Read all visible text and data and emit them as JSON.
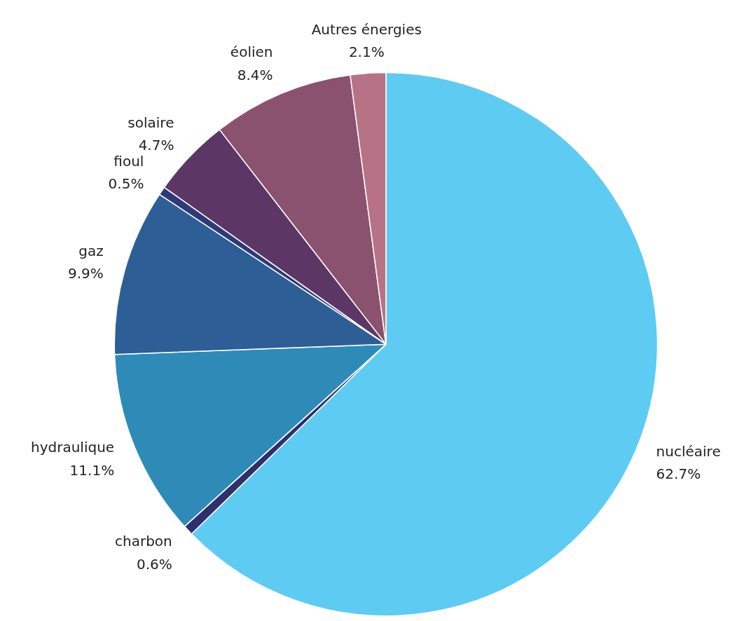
{
  "chart_data": {
    "type": "pie",
    "categories": [
      "nucléaire",
      "charbon",
      "hydraulique",
      "gaz",
      "fioul",
      "solaire",
      "éolien",
      "Autres énergies"
    ],
    "values": [
      62.7,
      0.6,
      11.1,
      9.9,
      0.5,
      4.7,
      8.4,
      2.1
    ],
    "value_labels": [
      "62.7%",
      "0.6%",
      "11.1%",
      "9.9%",
      "0.5%",
      "4.7%",
      "8.4%",
      "2.1%"
    ],
    "colors": [
      "#5ecbf3",
      "#2e2f6e",
      "#2e8bb8",
      "#2e5e96",
      "#2e3a78",
      "#5c3766",
      "#8a526f",
      "#b77385"
    ]
  }
}
